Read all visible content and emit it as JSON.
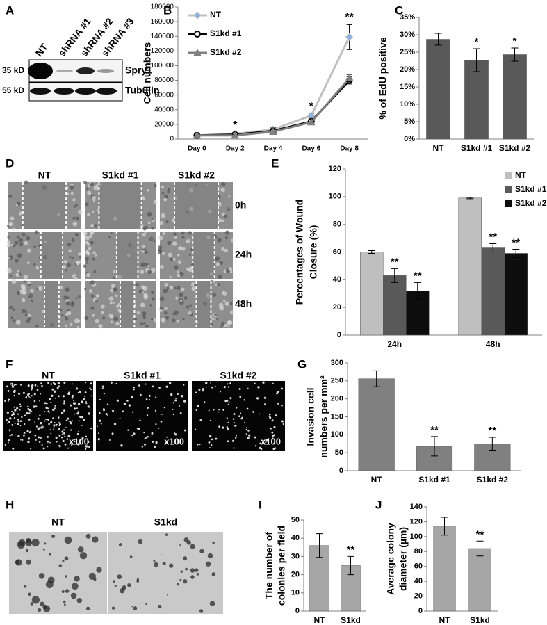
{
  "chart_data": [
    {
      "type": "line",
      "panel": "B",
      "y_label": [
        "Cell numbers"
      ],
      "categories": [
        "Day 0",
        "Day 2",
        "Day 4",
        "Day 6",
        "Day 8"
      ],
      "series": [
        {
          "name": "NT",
          "color": "#c0c0c0",
          "marker": "diamond",
          "marker_color": "#8db3e2",
          "values": [
            5000,
            7000,
            13000,
            32000,
            139000
          ],
          "errors": [
            1000,
            1500,
            3000,
            3000,
            17000
          ]
        },
        {
          "name": "S1kd #1",
          "color": "#000000",
          "marker": "circle",
          "marker_color": "#ffffff",
          "values": [
            5000,
            6000,
            11000,
            24000,
            80000
          ],
          "errors": [
            1000,
            1000,
            3000,
            3000,
            5000
          ]
        },
        {
          "name": "S1kd #2",
          "color": "#808080",
          "marker": "triangle",
          "marker_color": "#808080",
          "values": [
            5000,
            5000,
            10000,
            23000,
            83000
          ],
          "errors": [
            1000,
            1000,
            3000,
            3000,
            5000
          ]
        }
      ],
      "ylim": [
        0,
        180000
      ],
      "yticks": [
        0,
        20000,
        40000,
        60000,
        80000,
        100000,
        120000,
        140000,
        160000,
        180000
      ],
      "significance": [
        null,
        "*",
        null,
        "*",
        "**"
      ],
      "legend": "upper left"
    },
    {
      "type": "bar",
      "panel": "C",
      "y_label": [
        "% of EdU positive"
      ],
      "categories": [
        "NT",
        "S1kd #1",
        "S1kd #2"
      ],
      "values": [
        28.7,
        22.7,
        24.3
      ],
      "errors": [
        1.7,
        3.3,
        1.9
      ],
      "significance": [
        null,
        "*",
        "*"
      ],
      "color": "#595959",
      "ylim": [
        0,
        35
      ],
      "yticks": [
        {
          "value": 0,
          "label": "0%"
        },
        {
          "value": 5,
          "label": "5%"
        },
        {
          "value": 10,
          "label": "10%"
        },
        {
          "value": 15,
          "label": "15%"
        },
        {
          "value": 20,
          "label": "20%"
        },
        {
          "value": 25,
          "label": "25%"
        },
        {
          "value": 30,
          "label": "30%"
        },
        {
          "value": 35,
          "label": "35%"
        }
      ]
    },
    {
      "type": "bar",
      "panel": "E",
      "y_label": [
        "Percentages of Wound",
        "Closure (%)"
      ],
      "categories": [
        "24h",
        "48h"
      ],
      "series": [
        {
          "name": "NT",
          "color": "#bfbfbf",
          "values": [
            60,
            99
          ],
          "errors": [
            1,
            0.5
          ],
          "significance": [
            null,
            null
          ]
        },
        {
          "name": "S1kd #1",
          "color": "#595959",
          "values": [
            43,
            63
          ],
          "errors": [
            5,
            3
          ],
          "significance": [
            "**",
            "**"
          ]
        },
        {
          "name": "S1kd #2",
          "color": "#0d0d0d",
          "values": [
            32,
            59
          ],
          "errors": [
            6,
            3
          ],
          "significance": [
            "**",
            "**"
          ]
        }
      ],
      "ylim": [
        0,
        120
      ],
      "yticks": [
        0,
        20,
        40,
        60,
        80,
        100,
        120
      ],
      "legend": "upper right"
    },
    {
      "type": "bar",
      "panel": "G",
      "y_label": [
        "Invasion cell",
        "numbers per mm²"
      ],
      "categories": [
        "NT",
        "S1kd #1",
        "S1kd #2"
      ],
      "values": [
        256,
        68,
        75
      ],
      "errors": [
        22,
        27,
        18
      ],
      "significance": [
        null,
        "**",
        "**"
      ],
      "color": "#808080",
      "ylim": [
        0,
        300
      ],
      "yticks": [
        0,
        50,
        100,
        150,
        200,
        250,
        300
      ]
    },
    {
      "type": "bar",
      "panel": "I",
      "y_label": [
        "The number of",
        "colonies per field"
      ],
      "categories": [
        "NT",
        "S1kd"
      ],
      "values": [
        36,
        25
      ],
      "errors": [
        6.5,
        5
      ],
      "significance": [
        null,
        "**"
      ],
      "color": "#a6a6a6",
      "ylim": [
        0,
        50
      ],
      "yticks": [
        0,
        10,
        20,
        30,
        40,
        50
      ]
    },
    {
      "type": "bar",
      "panel": "J",
      "y_label": [
        "Average colony",
        "diameter (µm)"
      ],
      "categories": [
        "NT",
        "S1kd"
      ],
      "values": [
        114,
        84
      ],
      "errors": [
        12,
        10
      ],
      "significance": [
        null,
        "**"
      ],
      "color": "#a6a6a6",
      "ylim": [
        0,
        140
      ],
      "yticks": [
        0,
        20,
        40,
        60,
        80,
        100,
        120,
        140
      ]
    }
  ],
  "panels": {
    "A": {
      "letter": "A",
      "lanes": [
        "NT",
        "shRNA #1",
        "shRNA #2",
        "shRNA #3"
      ],
      "markers": [
        "35 kD",
        "55 kD"
      ],
      "proteins": [
        "Spry1",
        "Tubulin"
      ]
    },
    "D": {
      "letter": "D",
      "columns": [
        "NT",
        "S1kd #1",
        "S1kd #2"
      ],
      "rows": [
        "0h",
        "24h",
        "48h"
      ]
    },
    "F": {
      "letter": "F",
      "columns": [
        "NT",
        "S1kd #1",
        "S1kd #2"
      ],
      "magnification": "x100"
    },
    "H": {
      "letter": "H",
      "columns": [
        "NT",
        "S1kd"
      ]
    }
  }
}
